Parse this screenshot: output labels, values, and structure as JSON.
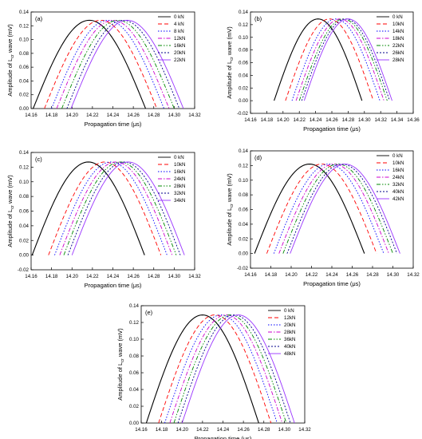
{
  "chart_data": [
    {
      "type": "line",
      "panel": "(a)",
      "xlabel": "Propagation time (μs)",
      "ylabel_prefix": "Amplitude of L",
      "ylabel_sub": "cr",
      "ylabel_suffix": " wave (mV)",
      "xlim": [
        14.16,
        14.32
      ],
      "ylim": [
        0,
        0.14
      ],
      "xticks": [
        "14.16",
        "14.18",
        "14.20",
        "14.22",
        "14.24",
        "14.26",
        "14.28",
        "14.30",
        "14.32"
      ],
      "yticks": [
        "0.00",
        "0.02",
        "0.04",
        "0.06",
        "0.08",
        "0.10",
        "0.12",
        "0.14"
      ],
      "legend": "top-right",
      "series": [
        {
          "name": "0 kN",
          "peak_x": 14.217,
          "peak_y": 0.128,
          "half_width": 0.055
        },
        {
          "name": "4 kN",
          "peak_x": 14.228,
          "peak_y": 0.128,
          "half_width": 0.055
        },
        {
          "name": "8 kN",
          "peak_x": 14.235,
          "peak_y": 0.128,
          "half_width": 0.055
        },
        {
          "name": "12kN",
          "peak_x": 14.24,
          "peak_y": 0.128,
          "half_width": 0.055
        },
        {
          "name": "16kN",
          "peak_x": 14.245,
          "peak_y": 0.128,
          "half_width": 0.055
        },
        {
          "name": "20kN",
          "peak_x": 14.25,
          "peak_y": 0.128,
          "half_width": 0.055
        },
        {
          "name": "22kN",
          "peak_x": 14.254,
          "peak_y": 0.128,
          "half_width": 0.055
        }
      ]
    },
    {
      "type": "line",
      "panel": "(b)",
      "xlabel": "Propagation time (μs)",
      "ylabel_prefix": "Amplitude of L",
      "ylabel_sub": "cr",
      "ylabel_suffix": " wave (mV)",
      "xlim": [
        14.16,
        14.36
      ],
      "ylim": [
        -0.02,
        0.14
      ],
      "xticks": [
        "14.16",
        "14.18",
        "14.20",
        "14.22",
        "14.24",
        "14.26",
        "14.28",
        "14.30",
        "14.32",
        "14.34",
        "14.36"
      ],
      "yticks": [
        "-0.02",
        "0.00",
        "0.02",
        "0.04",
        "0.06",
        "0.08",
        "0.10",
        "0.12",
        "0.14"
      ],
      "legend": "top-right",
      "series": [
        {
          "name": "0 kN",
          "peak_x": 14.243,
          "peak_y": 0.129,
          "half_width": 0.054
        },
        {
          "name": "10kN",
          "peak_x": 14.257,
          "peak_y": 0.129,
          "half_width": 0.054
        },
        {
          "name": "14kN",
          "peak_x": 14.265,
          "peak_y": 0.129,
          "half_width": 0.054
        },
        {
          "name": "18kN",
          "peak_x": 14.27,
          "peak_y": 0.129,
          "half_width": 0.054
        },
        {
          "name": "22kN",
          "peak_x": 14.274,
          "peak_y": 0.129,
          "half_width": 0.054
        },
        {
          "name": "26kN",
          "peak_x": 14.277,
          "peak_y": 0.129,
          "half_width": 0.054
        },
        {
          "name": "28kN",
          "peak_x": 14.28,
          "peak_y": 0.129,
          "half_width": 0.054
        }
      ]
    },
    {
      "type": "line",
      "panel": "(c)",
      "xlabel": "Propagation time (μs)",
      "ylabel_prefix": "Amplitude of L",
      "ylabel_sub": "cr",
      "ylabel_suffix": " wave (mV)",
      "xlim": [
        14.16,
        14.32
      ],
      "ylim": [
        -0.02,
        0.14
      ],
      "xticks": [
        "14.16",
        "14.18",
        "14.20",
        "14.22",
        "14.24",
        "14.26",
        "14.28",
        "14.30",
        "14.32"
      ],
      "yticks": [
        "-0.02",
        "0.00",
        "0.02",
        "0.04",
        "0.06",
        "0.08",
        "0.10",
        "0.12",
        "0.14"
      ],
      "legend": "top-right",
      "series": [
        {
          "name": "0 kN",
          "peak_x": 14.216,
          "peak_y": 0.127,
          "half_width": 0.055
        },
        {
          "name": "10kN",
          "peak_x": 14.232,
          "peak_y": 0.127,
          "half_width": 0.055
        },
        {
          "name": "16kN",
          "peak_x": 14.238,
          "peak_y": 0.127,
          "half_width": 0.055
        },
        {
          "name": "24kN",
          "peak_x": 14.243,
          "peak_y": 0.127,
          "half_width": 0.055
        },
        {
          "name": "28kN",
          "peak_x": 14.247,
          "peak_y": 0.127,
          "half_width": 0.055
        },
        {
          "name": "32kN",
          "peak_x": 14.251,
          "peak_y": 0.127,
          "half_width": 0.055
        },
        {
          "name": "34kN",
          "peak_x": 14.255,
          "peak_y": 0.127,
          "half_width": 0.055
        }
      ]
    },
    {
      "type": "line",
      "panel": "(d)",
      "xlabel": "Propagation time (μs)",
      "ylabel_prefix": "Amplitude of L",
      "ylabel_sub": "cr",
      "ylabel_suffix": " wave (mV)",
      "xlim": [
        14.16,
        14.32
      ],
      "ylim": [
        -0.02,
        0.14
      ],
      "xticks": [
        "14.16",
        "14.18",
        "14.20",
        "14.22",
        "14.24",
        "14.26",
        "14.28",
        "14.30",
        "14.32"
      ],
      "yticks": [
        "-0.02",
        "0.00",
        "0.02",
        "0.04",
        "0.06",
        "0.08",
        "0.10",
        "0.12",
        "0.14"
      ],
      "legend": "top-right",
      "series": [
        {
          "name": "0 kN",
          "peak_x": 14.218,
          "peak_y": 0.122,
          "half_width": 0.054
        },
        {
          "name": "10kN",
          "peak_x": 14.23,
          "peak_y": 0.122,
          "half_width": 0.054
        },
        {
          "name": "16kN",
          "peak_x": 14.237,
          "peak_y": 0.122,
          "half_width": 0.054
        },
        {
          "name": "24kN",
          "peak_x": 14.242,
          "peak_y": 0.122,
          "half_width": 0.054
        },
        {
          "name": "32kN",
          "peak_x": 14.246,
          "peak_y": 0.122,
          "half_width": 0.054
        },
        {
          "name": "40kN",
          "peak_x": 14.25,
          "peak_y": 0.122,
          "half_width": 0.054
        },
        {
          "name": "42kN",
          "peak_x": 14.253,
          "peak_y": 0.122,
          "half_width": 0.054
        }
      ]
    },
    {
      "type": "line",
      "panel": "(e)",
      "xlabel": "Propagation time (μs)",
      "ylabel_prefix": "Amplitude of L",
      "ylabel_sub": "cr",
      "ylabel_suffix": " wave (mV)",
      "xlim": [
        14.16,
        14.32
      ],
      "ylim": [
        0,
        0.14
      ],
      "xticks": [
        "14.16",
        "14.18",
        "14.20",
        "14.22",
        "14.24",
        "14.26",
        "14.28",
        "14.30",
        "14.32"
      ],
      "yticks": [
        "0.00",
        "0.02",
        "0.04",
        "0.06",
        "0.08",
        "0.10",
        "0.12",
        "0.14"
      ],
      "legend": "top-right",
      "series": [
        {
          "name": "0 kN",
          "peak_x": 14.22,
          "peak_y": 0.129,
          "half_width": 0.055
        },
        {
          "name": "12kN",
          "peak_x": 14.232,
          "peak_y": 0.129,
          "half_width": 0.055
        },
        {
          "name": "20kN",
          "peak_x": 14.238,
          "peak_y": 0.129,
          "half_width": 0.055
        },
        {
          "name": "28kN",
          "peak_x": 14.243,
          "peak_y": 0.129,
          "half_width": 0.055
        },
        {
          "name": "36kN",
          "peak_x": 14.247,
          "peak_y": 0.129,
          "half_width": 0.055
        },
        {
          "name": "40kN",
          "peak_x": 14.251,
          "peak_y": 0.129,
          "half_width": 0.055
        },
        {
          "name": "48kN",
          "peak_x": 14.255,
          "peak_y": 0.129,
          "half_width": 0.055
        }
      ]
    }
  ],
  "series_styles": [
    {
      "color": "#000000",
      "dash": ""
    },
    {
      "color": "#ff0000",
      "dash": "5,3"
    },
    {
      "color": "#0000ff",
      "dash": "1.5,2"
    },
    {
      "color": "#cc00cc",
      "dash": "5,2,1.5,2"
    },
    {
      "color": "#008800",
      "dash": "5,2,1.5,2,1.5,2"
    },
    {
      "color": "#000088",
      "dash": "2,2"
    },
    {
      "color": "#9933ff",
      "dash": ""
    }
  ]
}
